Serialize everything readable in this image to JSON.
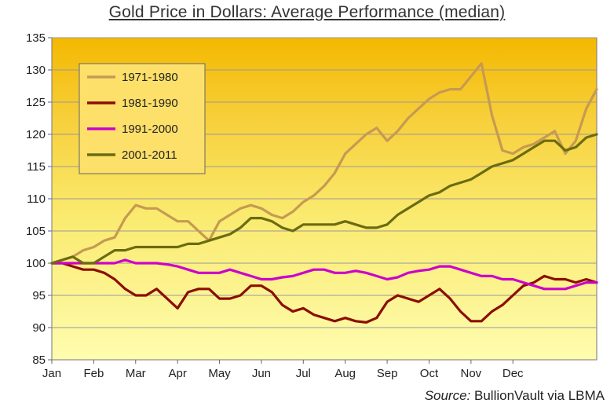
{
  "chart_data": {
    "type": "line",
    "title": "Gold Price in Dollars: Average Performance (median)",
    "xlabel": "",
    "ylabel": "",
    "ylim": [
      85,
      135
    ],
    "yticks": [
      85,
      90,
      95,
      100,
      105,
      110,
      115,
      120,
      125,
      130,
      135
    ],
    "categories": [
      "Jan",
      "Feb",
      "Mar",
      "Apr",
      "May",
      "Jun",
      "Jul",
      "Aug",
      "Sep",
      "Oct",
      "Nov",
      "Dec"
    ],
    "xlim": [
      0,
      13
    ],
    "x": [
      0,
      0.25,
      0.5,
      0.75,
      1,
      1.25,
      1.5,
      1.75,
      2,
      2.25,
      2.5,
      2.75,
      3,
      3.25,
      3.5,
      3.75,
      4,
      4.25,
      4.5,
      4.75,
      5,
      5.25,
      5.5,
      5.75,
      6,
      6.25,
      6.5,
      6.75,
      7,
      7.25,
      7.5,
      7.75,
      8,
      8.25,
      8.5,
      8.75,
      9,
      9.25,
      9.5,
      9.75,
      10,
      10.25,
      10.5,
      10.75,
      11,
      11.25,
      11.5,
      11.75,
      12,
      12.25,
      12.5,
      12.75,
      13
    ],
    "series": [
      {
        "name": "1971-1980",
        "color": "#C69A52",
        "values": [
          100,
          100.5,
          101,
          102,
          102.5,
          103.5,
          104,
          107,
          109,
          108.5,
          108.5,
          107.5,
          106.5,
          106.5,
          105,
          103.5,
          106.5,
          107.5,
          108.5,
          109,
          108.5,
          107.5,
          107,
          108,
          109.5,
          110.5,
          112,
          114,
          117,
          118.5,
          120,
          121,
          119,
          120.5,
          122.5,
          124,
          125.5,
          126.5,
          127,
          127,
          129,
          131,
          123,
          117.5,
          117,
          118,
          118.5,
          119.5,
          120.5,
          117,
          119,
          124,
          127
        ]
      },
      {
        "name": "1981-1990",
        "color": "#8B0E00",
        "values": [
          100,
          100,
          99.5,
          99,
          99,
          98.5,
          97.5,
          96,
          95,
          95,
          96,
          94.5,
          93,
          95.5,
          96,
          96,
          94.5,
          94.5,
          95,
          96.5,
          96.5,
          95.5,
          93.5,
          92.5,
          93,
          92,
          91.5,
          91,
          91.5,
          91,
          90.8,
          91.5,
          94,
          95,
          94.5,
          94,
          95,
          96,
          94.5,
          92.5,
          91,
          91,
          92.5,
          93.5,
          95,
          96.5,
          97,
          98,
          97.5,
          97.5,
          97,
          97.5,
          97
        ]
      },
      {
        "name": "1991-2000",
        "color": "#CC00CC",
        "values": [
          100,
          100,
          100,
          100,
          100,
          100,
          100,
          100.5,
          100,
          100,
          100,
          99.8,
          99.5,
          99,
          98.5,
          98.5,
          98.5,
          99,
          98.5,
          98,
          97.5,
          97.5,
          97.8,
          98,
          98.5,
          99,
          99,
          98.5,
          98.5,
          98.8,
          98.5,
          98,
          97.5,
          97.8,
          98.5,
          98.8,
          99,
          99.5,
          99.5,
          99,
          98.5,
          98,
          98,
          97.5,
          97.5,
          97,
          96.5,
          96,
          96,
          96,
          96.5,
          97,
          97
        ]
      },
      {
        "name": "2001-2011",
        "color": "#6B6B10",
        "values": [
          100,
          100.5,
          101,
          100,
          100,
          101,
          102,
          102,
          102.5,
          102.5,
          102.5,
          102.5,
          102.5,
          103,
          103,
          103.5,
          104,
          104.5,
          105.5,
          107,
          107,
          106.5,
          105.5,
          105,
          106,
          106,
          106,
          106,
          106.5,
          106,
          105.5,
          105.5,
          106,
          107.5,
          108.5,
          109.5,
          110.5,
          111,
          112,
          112.5,
          113,
          114,
          115,
          115.5,
          116,
          117,
          118,
          119,
          119,
          117.5,
          118,
          119.5,
          120
        ]
      }
    ],
    "legend": "top-left inside plot",
    "grid": "horizontal",
    "source_label": "Source:",
    "source_text": " BullionVault via LBMA"
  }
}
